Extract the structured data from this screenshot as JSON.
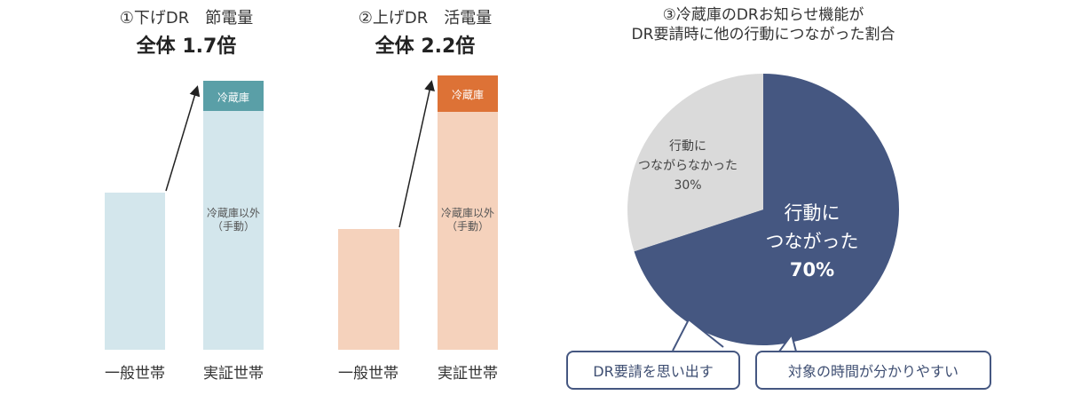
{
  "chart_data": [
    {
      "type": "bar",
      "stacked": true,
      "title": "①下げDR　節電量",
      "subtitle": "全体 1.7倍",
      "categories": [
        "一般世帯",
        "実証世帯"
      ],
      "series": [
        {
          "name": "冷蔵庫以外\n（手動）",
          "values": [
            1.0,
            1.45
          ],
          "color": "#d3e6ec"
        },
        {
          "name": "冷蔵庫",
          "values": [
            0,
            0.25
          ],
          "color": "#5a9fa7"
        }
      ],
      "colors": {
        "arrow": "#222222"
      }
    },
    {
      "type": "bar",
      "stacked": true,
      "title": "②上げDR　活電量",
      "subtitle": "全体 2.2倍",
      "categories": [
        "一般世帯",
        "実証世帯"
      ],
      "series": [
        {
          "name": "冷蔵庫以外\n（手動）",
          "values": [
            1.0,
            1.95
          ],
          "color": "#f5d2bc"
        },
        {
          "name": "冷蔵庫",
          "values": [
            0,
            0.25
          ],
          "color": "#dd7236"
        }
      ],
      "colors": {
        "arrow": "#222222"
      }
    },
    {
      "type": "pie",
      "title": "③冷蔵庫のDRお知らせ機能が\nDR要請時に他の行動につながった割合",
      "slices": [
        {
          "label": "行動に\nつながった",
          "value": 70,
          "value_label": "70%",
          "color": "#455781"
        },
        {
          "label": "行動に\nつながらなかった",
          "value": 30,
          "value_label": "30%",
          "color": "#dadada"
        }
      ],
      "callouts": [
        "DR要請を思い出す",
        "対象の時間が分かりやすい"
      ],
      "colors": {
        "callout_border": "#455781",
        "callout_text": "#3e4e72"
      }
    }
  ]
}
